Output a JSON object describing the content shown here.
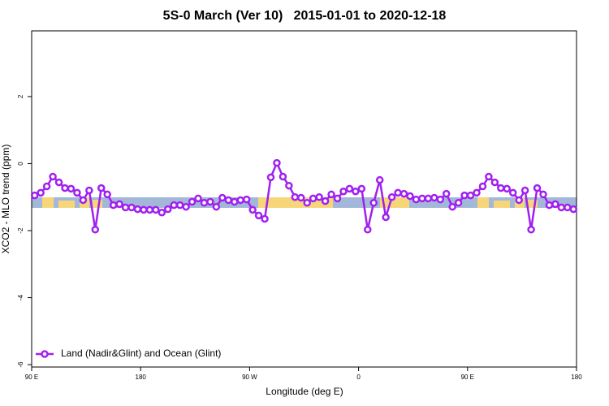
{
  "chart_data": {
    "type": "line",
    "title": "5S-0 March (Ver 10)   2015-01-01 to 2020-12-18",
    "x_label": "Longitude (deg E)",
    "y_label": "XCO2 - MLO trend (ppm)",
    "xlim": [
      90,
      540
    ],
    "ylim": [
      -6.07,
      3.96
    ],
    "xticks": [
      {
        "value": 90,
        "label": "90 E"
      },
      180,
      {
        "value": 270,
        "label": "90 W"
      },
      {
        "value": 360,
        "label": "0"
      },
      {
        "value": 450,
        "label": "90 E"
      },
      {
        "value": 540,
        "label": "180"
      }
    ],
    "yticks": [
      -6,
      -4,
      -2,
      0,
      2
    ],
    "legend": "bottom-left",
    "series": [
      {
        "name": "Land (Nadir&Glint) and Ocean (Glint)",
        "color": "#a020f0",
        "x": [
          92.5,
          97.5,
          102.5,
          107.5,
          112.5,
          117.5,
          122.5,
          127.5,
          132.5,
          137.5,
          142.5,
          147.5,
          152.5,
          157.5,
          162.5,
          167.5,
          172.5,
          177.5,
          182.5,
          187.5,
          192.5,
          197.5,
          202.5,
          207.5,
          212.5,
          217.5,
          222.5,
          227.5,
          232.5,
          237.5,
          242.5,
          247.5,
          252.5,
          257.5,
          262.5,
          267.5,
          272.5,
          277.5,
          282.5,
          287.5,
          292.5,
          297.5,
          302.5,
          307.5,
          312.5,
          317.5,
          322.5,
          327.5,
          332.5,
          337.5,
          342.5,
          347.5,
          352.5,
          357.5,
          362.5,
          367.5,
          372.5,
          377.5,
          382.5,
          387.5,
          392.5,
          397.5,
          402.5,
          407.5,
          412.5,
          417.5,
          422.5,
          427.5,
          432.5,
          437.5,
          442.5,
          447.5,
          452.5,
          457.5,
          462.5,
          467.5,
          472.5,
          477.5,
          482.5,
          487.5,
          492.5,
          497.5,
          502.5,
          507.5,
          512.5,
          517.5,
          522.5,
          527.5,
          532.5,
          537.5
        ],
        "values": [
          -0.95,
          -0.87,
          -0.68,
          -0.39,
          -0.56,
          -0.73,
          -0.75,
          -0.87,
          -1.09,
          -0.8,
          -1.97,
          -0.73,
          -0.92,
          -1.24,
          -1.21,
          -1.31,
          -1.31,
          -1.36,
          -1.38,
          -1.38,
          -1.38,
          -1.46,
          -1.36,
          -1.24,
          -1.24,
          -1.29,
          -1.14,
          -1.04,
          -1.17,
          -1.14,
          -1.29,
          -1.02,
          -1.09,
          -1.14,
          -1.09,
          -1.07,
          -1.38,
          -1.55,
          -1.65,
          -0.41,
          0.02,
          -0.39,
          -0.66,
          -1.0,
          -1.02,
          -1.17,
          -1.04,
          -1.0,
          -1.12,
          -0.92,
          -1.04,
          -0.83,
          -0.75,
          -0.83,
          -0.75,
          -1.97,
          -1.17,
          -0.49,
          -1.6,
          -1.0,
          -0.87,
          -0.9,
          -0.97,
          -1.07,
          -1.04,
          -1.04,
          -1.02,
          -1.07,
          -0.9,
          -1.29,
          -1.17,
          -0.95,
          -0.95,
          -0.87,
          -0.68,
          -0.39,
          -0.56,
          -0.73,
          -0.75,
          -0.87,
          -1.09,
          -0.8,
          -1.97,
          -0.73,
          -0.92,
          -1.24,
          -1.21,
          -1.31,
          -1.31,
          -1.36
        ]
      }
    ]
  }
}
